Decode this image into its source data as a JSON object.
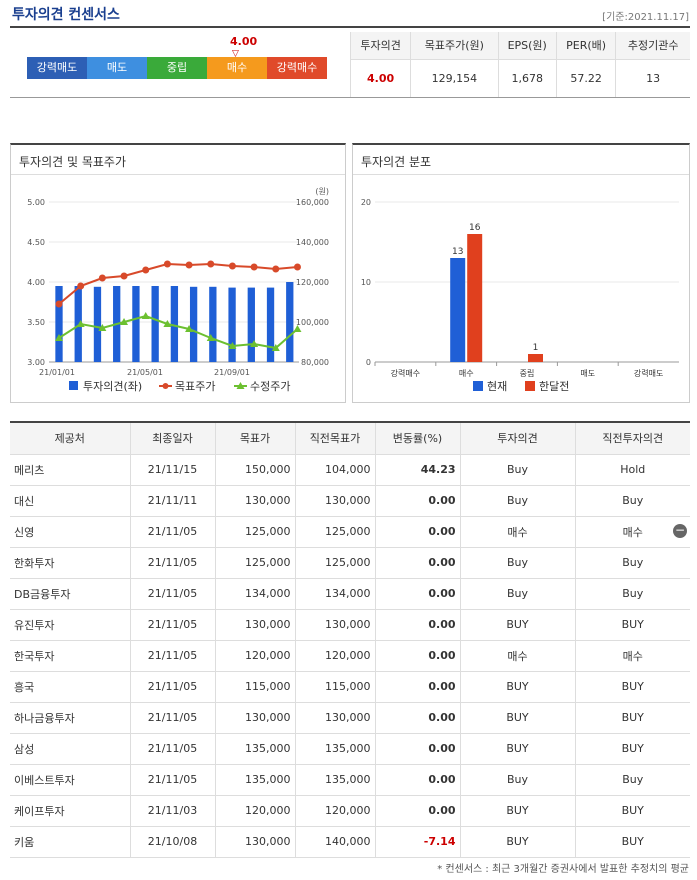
{
  "header": {
    "title": "투자의견 컨센서스",
    "basis": "[기준:2021.11.17]"
  },
  "scale": {
    "marker_value": "4.00",
    "items": [
      {
        "label": "강력매도",
        "color": "#2d5fb5"
      },
      {
        "label": "매도",
        "color": "#3e8fe0"
      },
      {
        "label": "중립",
        "color": "#3aaa3a"
      },
      {
        "label": "매수",
        "color": "#f59a1d"
      },
      {
        "label": "강력매수",
        "color": "#e04a2a"
      }
    ]
  },
  "summary": {
    "headers": [
      "투자의견",
      "목표주가(원)",
      "EPS(원)",
      "PER(배)",
      "추정기관수"
    ],
    "values": [
      "4.00",
      "129,154",
      "1,678",
      "57.22",
      "13"
    ]
  },
  "chart_data": [
    {
      "type": "bar+line",
      "title": "투자의견 및 목표주가",
      "unit_right": "(원)",
      "y_left": {
        "ticks": [
          "5.00",
          "4.50",
          "4.00",
          "3.50",
          "3.00"
        ],
        "min": 3.0,
        "max": 5.0
      },
      "y_right": {
        "ticks": [
          "160,000",
          "140,000",
          "120,000",
          "100,000",
          "80,000"
        ],
        "min": 80000,
        "max": 160000
      },
      "x_ticks": [
        "21/01/01",
        "21/05/01",
        "21/09/01"
      ],
      "series": [
        {
          "name": "투자의견(좌)",
          "color": "#1f5fd6",
          "values": [
            3.95,
            3.95,
            3.94,
            3.95,
            3.95,
            3.95,
            3.95,
            3.94,
            3.94,
            3.93,
            3.93,
            3.93,
            4.0
          ]
        },
        {
          "name": "목표주가",
          "color": "#d84a2a",
          "values": [
            109000,
            118000,
            122000,
            123000,
            126000,
            129000,
            128500,
            129000,
            128000,
            127500,
            126500,
            127500
          ]
        },
        {
          "name": "수정주가",
          "color": "#6cc030",
          "values": [
            92000,
            99000,
            97000,
            100000,
            103000,
            99000,
            96500,
            92000,
            88000,
            89000,
            87000,
            96500
          ]
        }
      ]
    },
    {
      "type": "bar",
      "title": "투자의견 분포",
      "y_ticks": [
        "20",
        "10",
        "0"
      ],
      "y_range": [
        0,
        20
      ],
      "categories": [
        "강력매수",
        "매수",
        "중립",
        "매도",
        "강력매도"
      ],
      "series": [
        {
          "name": "현재",
          "color": "#1f5fd6",
          "values": [
            0,
            13,
            0,
            0,
            0
          ]
        },
        {
          "name": "한달전",
          "color": "#e0401e",
          "values": [
            0,
            16,
            1,
            0,
            0
          ]
        }
      ],
      "data_labels": [
        "13",
        "16",
        "1"
      ]
    }
  ],
  "table": {
    "headers": [
      "제공처",
      "최종일자",
      "목표가",
      "직전목표가",
      "변동률(%)",
      "투자의견",
      "직전투자의견"
    ],
    "rows": [
      [
        "메리츠",
        "21/11/15",
        "150,000",
        "104,000",
        "44.23",
        "Buy",
        "Hold"
      ],
      [
        "대신",
        "21/11/11",
        "130,000",
        "130,000",
        "0.00",
        "Buy",
        "Buy"
      ],
      [
        "신영",
        "21/11/05",
        "125,000",
        "125,000",
        "0.00",
        "매수",
        "매수"
      ],
      [
        "한화투자",
        "21/11/05",
        "125,000",
        "125,000",
        "0.00",
        "Buy",
        "Buy"
      ],
      [
        "DB금융투자",
        "21/11/05",
        "134,000",
        "134,000",
        "0.00",
        "Buy",
        "Buy"
      ],
      [
        "유진투자",
        "21/11/05",
        "130,000",
        "130,000",
        "0.00",
        "BUY",
        "BUY"
      ],
      [
        "한국투자",
        "21/11/05",
        "120,000",
        "120,000",
        "0.00",
        "매수",
        "매수"
      ],
      [
        "흥국",
        "21/11/05",
        "115,000",
        "115,000",
        "0.00",
        "BUY",
        "BUY"
      ],
      [
        "하나금융투자",
        "21/11/05",
        "130,000",
        "130,000",
        "0.00",
        "BUY",
        "BUY"
      ],
      [
        "삼성",
        "21/11/05",
        "135,000",
        "135,000",
        "0.00",
        "BUY",
        "BUY"
      ],
      [
        "이베스트투자",
        "21/11/05",
        "135,000",
        "135,000",
        "0.00",
        "Buy",
        "Buy"
      ],
      [
        "케이프투자",
        "21/11/03",
        "120,000",
        "120,000",
        "0.00",
        "BUY",
        "BUY"
      ],
      [
        "키움",
        "21/10/08",
        "130,000",
        "140,000",
        "-7.14",
        "BUY",
        "BUY"
      ]
    ]
  },
  "footnote": "* 컨센서스 : 최근 3개월간 증권사에서 발표한 추정치의 평균"
}
